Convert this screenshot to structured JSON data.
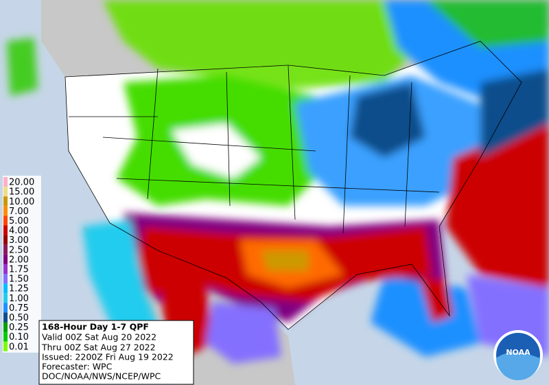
{
  "legend": {
    "entries": [
      {
        "label": "20.00",
        "color": "#ffb0c8"
      },
      {
        "label": "15.00",
        "color": "#eedd88"
      },
      {
        "label": "10.00",
        "color": "#cc9900"
      },
      {
        "label": "7.00",
        "color": "#ff8c00"
      },
      {
        "label": "5.00",
        "color": "#ff4500"
      },
      {
        "label": "4.00",
        "color": "#cc0000"
      },
      {
        "label": "3.00",
        "color": "#990000"
      },
      {
        "label": "2.50",
        "color": "#8b1a5a"
      },
      {
        "label": "2.00",
        "color": "#800080"
      },
      {
        "label": "1.75",
        "color": "#9933cc"
      },
      {
        "label": "1.50",
        "color": "#8470ff"
      },
      {
        "label": "1.25",
        "color": "#00bfff"
      },
      {
        "label": "1.00",
        "color": "#22ccee"
      },
      {
        "label": "0.75",
        "color": "#1e90ff"
      },
      {
        "label": "0.50",
        "color": "#104e8b"
      },
      {
        "label": "0.25",
        "color": "#00a000"
      },
      {
        "label": "0.10",
        "color": "#00cc00"
      },
      {
        "label": "0.01",
        "color": "#7cfc00"
      }
    ]
  },
  "info_box": {
    "lines": [
      "168-Hour Day 1-7 QPF",
      "Valid 00Z Sat Aug 20 2022",
      "Thru 00Z Sat Aug 27 2022",
      "Issued: 2200Z Fri Aug 19 2022",
      "Forecaster: WPC",
      "DOC/NOAA/NWS/NCEP/WPC"
    ]
  },
  "logo": {
    "text": "NOAA"
  }
}
